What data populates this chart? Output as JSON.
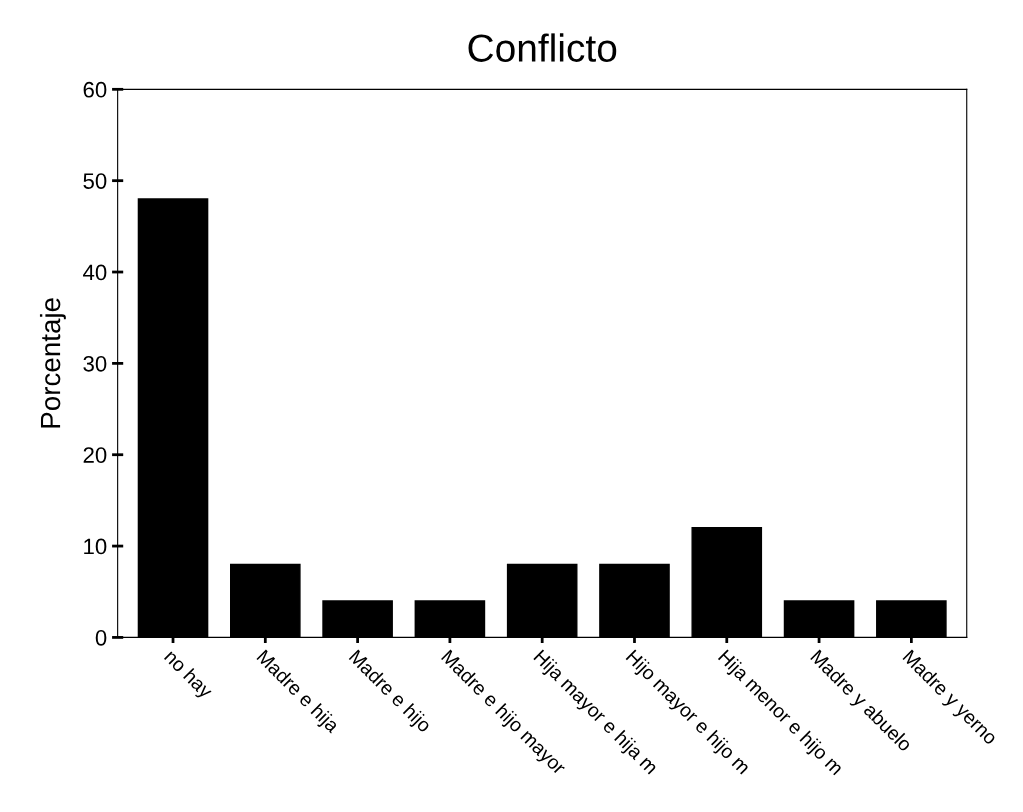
{
  "chart_data": {
    "type": "bar",
    "title": "Conflicto",
    "ylabel": "Porcentaje",
    "categories": [
      "no hay",
      "Madre e hija",
      "Madre e hijo",
      "Madre e hijo mayor",
      "Hija mayor e hija m",
      "Hijo mayor e hijo m",
      "Hija menor e hijo m",
      "Madre y abuelo",
      "Madre y yerno"
    ],
    "values": [
      48,
      8,
      4,
      4,
      8,
      8,
      12,
      4,
      4
    ],
    "color": "#000000",
    "ylim": [
      0,
      60
    ],
    "yticks": [
      0,
      10,
      20,
      30,
      40,
      50,
      60
    ],
    "grid": false
  }
}
